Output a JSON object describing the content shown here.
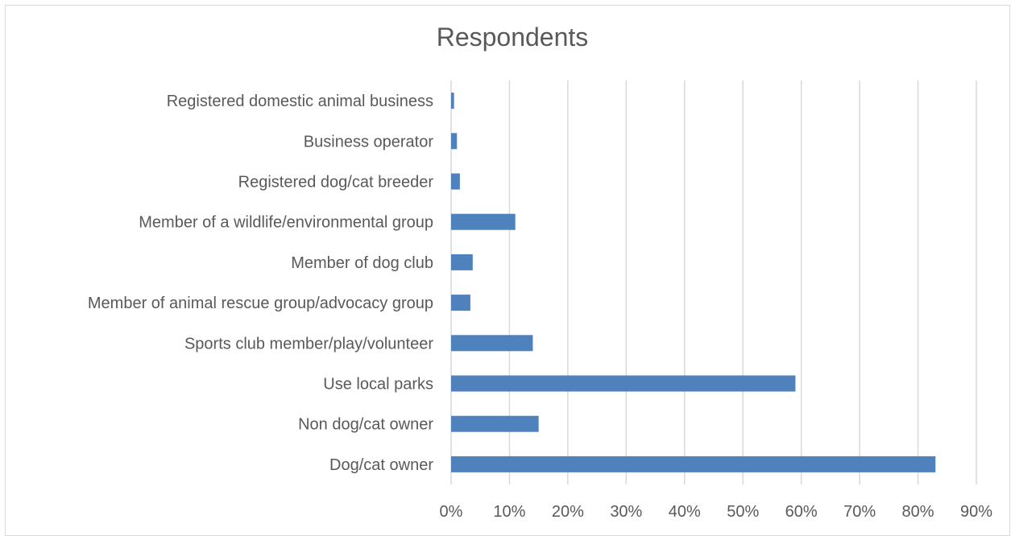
{
  "chart_data": {
    "type": "bar",
    "orientation": "horizontal",
    "title": "Respondents",
    "xlabel": "",
    "ylabel": "",
    "categories": [
      "Registered domestic animal business",
      "Business operator",
      "Registered dog/cat breeder",
      "Member of a wildlife/environmental group",
      "Member of dog club",
      "Member of animal rescue group/advocacy group",
      "Sports club member/play/volunteer",
      "Use local parks",
      "Non dog/cat owner",
      "Dog/cat owner"
    ],
    "values": [
      0.5,
      1,
      1.5,
      11,
      3.7,
      3.3,
      14,
      59,
      15,
      83
    ],
    "value_unit": "%",
    "xlim": [
      0,
      90
    ],
    "x_ticks": [
      "0%",
      "10%",
      "20%",
      "30%",
      "40%",
      "50%",
      "60%",
      "70%",
      "80%",
      "90%"
    ],
    "grid": true,
    "legend": "none",
    "colors": {
      "bar": "#4f81bd",
      "grid": "#d9d9d9",
      "text": "#595959",
      "border": "#d9d9d9"
    }
  }
}
